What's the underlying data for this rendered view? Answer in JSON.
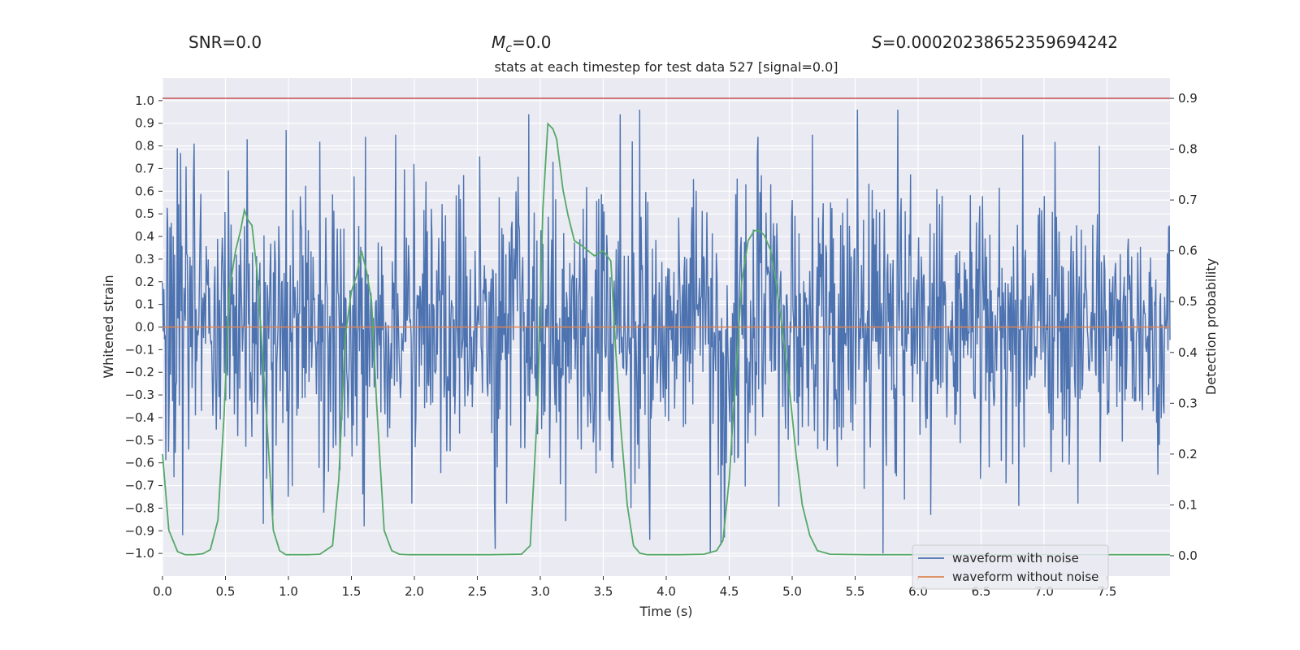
{
  "header": {
    "snr_label": "SNR=0.0",
    "mc_symbol": "M",
    "mc_subscript": "c",
    "mc_value": "=0.0",
    "s_symbol": "S",
    "s_value": "=0.00020238652359694242"
  },
  "chart_data": {
    "type": "line",
    "title": "stats at each timestep for test data 527 [signal=0.0]",
    "xlabel": "Time (s)",
    "ylabel": "Whitened strain",
    "y2label": "Detection probability",
    "xlim": [
      0.0,
      8.0
    ],
    "ylim": [
      -1.1,
      1.1
    ],
    "y2lim": [
      -0.04,
      0.94
    ],
    "xticks": [
      "0.0",
      "0.5",
      "1.0",
      "1.5",
      "2.0",
      "2.5",
      "3.0",
      "3.5",
      "4.0",
      "4.5",
      "5.0",
      "5.5",
      "6.0",
      "6.5",
      "7.0",
      "7.5"
    ],
    "yticks": [
      "1.0",
      "0.9",
      "0.8",
      "0.7",
      "0.6",
      "0.5",
      "0.4",
      "0.3",
      "0.2",
      "0.1",
      "0.0",
      "−0.1",
      "−0.2",
      "−0.3",
      "−0.4",
      "−0.5",
      "−0.6",
      "−0.7",
      "−0.8",
      "−0.9",
      "−1.0"
    ],
    "y2ticks": [
      "0.9",
      "0.8",
      "0.7",
      "0.6",
      "0.5",
      "0.4",
      "0.3",
      "0.2",
      "0.1",
      "0.0"
    ],
    "threshold": {
      "value": 0.9,
      "axis": "right",
      "color": "#c44e52"
    },
    "legend": {
      "position": "bottom-right",
      "entries": [
        {
          "label": "waveform with noise",
          "color": "#4c72b0"
        },
        {
          "label": "waveform without noise",
          "color": "#dd8452"
        }
      ]
    },
    "series": [
      {
        "name": "waveform with noise",
        "axis": "left",
        "color": "#4c72b0",
        "seed": 527,
        "samples": 1500,
        "x_start": 0.0,
        "x_end": 8.0,
        "upper_extremes": [
          [
            0.12,
            0.79
          ],
          [
            0.25,
            0.81
          ],
          [
            0.98,
            0.87
          ],
          [
            1.61,
            0.84
          ],
          [
            1.85,
            0.85
          ],
          [
            3.1,
            0.73
          ],
          [
            3.73,
            0.82
          ],
          [
            3.79,
            0.96
          ],
          [
            4.73,
            0.84
          ],
          [
            5.16,
            0.85
          ],
          [
            5.52,
            0.96
          ],
          [
            5.84,
            0.96
          ],
          [
            6.83,
            0.85
          ],
          [
            7.44,
            0.8
          ]
        ],
        "lower_extremes": [
          [
            0.16,
            -0.92
          ],
          [
            0.8,
            -0.87
          ],
          [
            1.0,
            -0.75
          ],
          [
            1.28,
            -0.82
          ],
          [
            1.6,
            -0.88
          ],
          [
            1.98,
            -0.78
          ],
          [
            2.73,
            -0.78
          ],
          [
            3.72,
            -0.8
          ],
          [
            3.87,
            -0.94
          ],
          [
            4.35,
            -1.0
          ],
          [
            4.46,
            -0.93
          ],
          [
            5.72,
            -1.0
          ],
          [
            6.1,
            -0.83
          ],
          [
            6.8,
            -0.79
          ],
          [
            7.27,
            -0.78
          ]
        ]
      },
      {
        "name": "waveform without noise",
        "axis": "left",
        "color": "#dd8452",
        "x": [
          0.0,
          8.0
        ],
        "y": [
          0.0,
          0.0
        ]
      },
      {
        "name": "detection probability",
        "axis": "right",
        "color": "#55a868",
        "x": [
          0.0,
          0.05,
          0.12,
          0.18,
          0.25,
          0.32,
          0.38,
          0.44,
          0.49,
          0.53,
          0.58,
          0.62,
          0.65,
          0.68,
          0.71,
          0.75,
          0.78,
          0.83,
          0.88,
          0.93,
          0.98,
          1.05,
          1.15,
          1.25,
          1.35,
          1.4,
          1.45,
          1.5,
          1.54,
          1.58,
          1.62,
          1.66,
          1.7,
          1.76,
          1.82,
          1.88,
          1.95,
          2.05,
          2.3,
          2.6,
          2.85,
          2.92,
          2.98,
          3.02,
          3.06,
          3.1,
          3.13,
          3.18,
          3.22,
          3.27,
          3.33,
          3.38,
          3.43,
          3.5,
          3.56,
          3.6,
          3.64,
          3.69,
          3.74,
          3.79,
          3.85,
          3.92,
          4.1,
          4.3,
          4.4,
          4.45,
          4.5,
          4.55,
          4.6,
          4.65,
          4.7,
          4.74,
          4.78,
          4.83,
          4.87,
          4.92,
          4.97,
          5.03,
          5.08,
          5.14,
          5.2,
          5.3,
          5.6,
          6.0,
          6.5,
          7.0,
          7.5,
          8.0
        ],
        "y": [
          0.2,
          0.05,
          0.008,
          0.002,
          0.002,
          0.004,
          0.012,
          0.07,
          0.28,
          0.52,
          0.6,
          0.64,
          0.68,
          0.66,
          0.65,
          0.56,
          0.45,
          0.26,
          0.05,
          0.01,
          0.002,
          0.002,
          0.002,
          0.003,
          0.02,
          0.15,
          0.43,
          0.52,
          0.55,
          0.6,
          0.56,
          0.5,
          0.3,
          0.05,
          0.01,
          0.003,
          0.002,
          0.002,
          0.002,
          0.002,
          0.003,
          0.02,
          0.3,
          0.68,
          0.85,
          0.84,
          0.82,
          0.72,
          0.67,
          0.62,
          0.61,
          0.6,
          0.59,
          0.6,
          0.58,
          0.4,
          0.25,
          0.1,
          0.02,
          0.005,
          0.002,
          0.002,
          0.002,
          0.003,
          0.01,
          0.03,
          0.15,
          0.35,
          0.54,
          0.62,
          0.64,
          0.64,
          0.63,
          0.6,
          0.54,
          0.45,
          0.35,
          0.2,
          0.1,
          0.04,
          0.01,
          0.003,
          0.002,
          0.002,
          0.002,
          0.002,
          0.002,
          0.002
        ]
      }
    ]
  }
}
